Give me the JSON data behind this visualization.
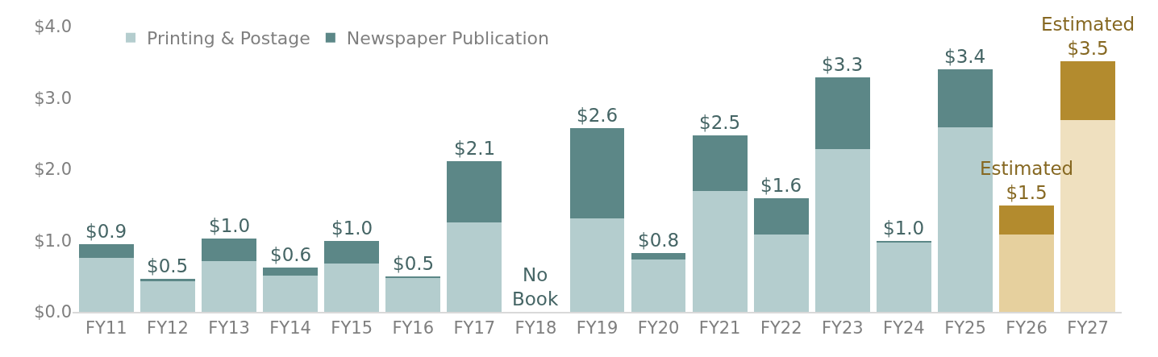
{
  "chart_data": {
    "type": "bar",
    "stacked": true,
    "categories": [
      "FY11",
      "FY12",
      "FY13",
      "FY14",
      "FY15",
      "FY16",
      "FY17",
      "FY18",
      "FY19",
      "FY20",
      "FY21",
      "FY22",
      "FY23",
      "FY24",
      "FY25",
      "FY26",
      "FY27"
    ],
    "series": [
      {
        "name": "Printing & Postage",
        "color": "#b4cdce",
        "colors": [
          "#b4cdce",
          "#b4cdce",
          "#b4cdce",
          "#b4cdce",
          "#b4cdce",
          "#b4cdce",
          "#b4cdce",
          "#b4cdce",
          "#b4cdce",
          "#b4cdce",
          "#b4cdce",
          "#b4cdce",
          "#b4cdce",
          "#b4cdce",
          "#b4cdce",
          "#e6d09e",
          "#efe0bf"
        ],
        "values": [
          0.76,
          0.43,
          0.71,
          0.51,
          0.68,
          0.48,
          1.25,
          null,
          1.31,
          0.74,
          1.69,
          1.08,
          2.28,
          0.97,
          2.59,
          1.09,
          2.69
        ]
      },
      {
        "name": "Newspaper Publication",
        "color": "#5c8787",
        "colors": [
          "#5c8787",
          "#5c8787",
          "#5c8787",
          "#5c8787",
          "#5c8787",
          "#5c8787",
          "#5c8787",
          "#5c8787",
          "#5c8787",
          "#5c8787",
          "#5c8787",
          "#5c8787",
          "#5c8787",
          "#5c8787",
          "#5c8787",
          "#b38b2e",
          "#b38b2e"
        ],
        "values": [
          0.19,
          0.03,
          0.32,
          0.11,
          0.32,
          0.02,
          0.86,
          null,
          1.27,
          0.08,
          0.78,
          0.51,
          1.01,
          0.03,
          0.81,
          0.4,
          0.82
        ]
      }
    ],
    "totals": [
      "$0.9",
      "$0.5",
      "$1.0",
      "$0.6",
      "$1.0",
      "$0.5",
      "$2.1",
      "No\nBook",
      "$2.6",
      "$0.8",
      "$2.5",
      "$1.6",
      "$3.3",
      "$1.0",
      "$3.4",
      "Estimated\n$1.5",
      "Estimated\n$3.5"
    ],
    "ylim": [
      0,
      4
    ],
    "yticks": [
      {
        "value": 0,
        "label": "$0.0"
      },
      {
        "value": 1,
        "label": "$1.0"
      },
      {
        "value": 2,
        "label": "$2.0"
      },
      {
        "value": 3,
        "label": "$3.0"
      },
      {
        "value": 4,
        "label": "$4.0"
      }
    ],
    "grid": false,
    "legend": "top left"
  }
}
